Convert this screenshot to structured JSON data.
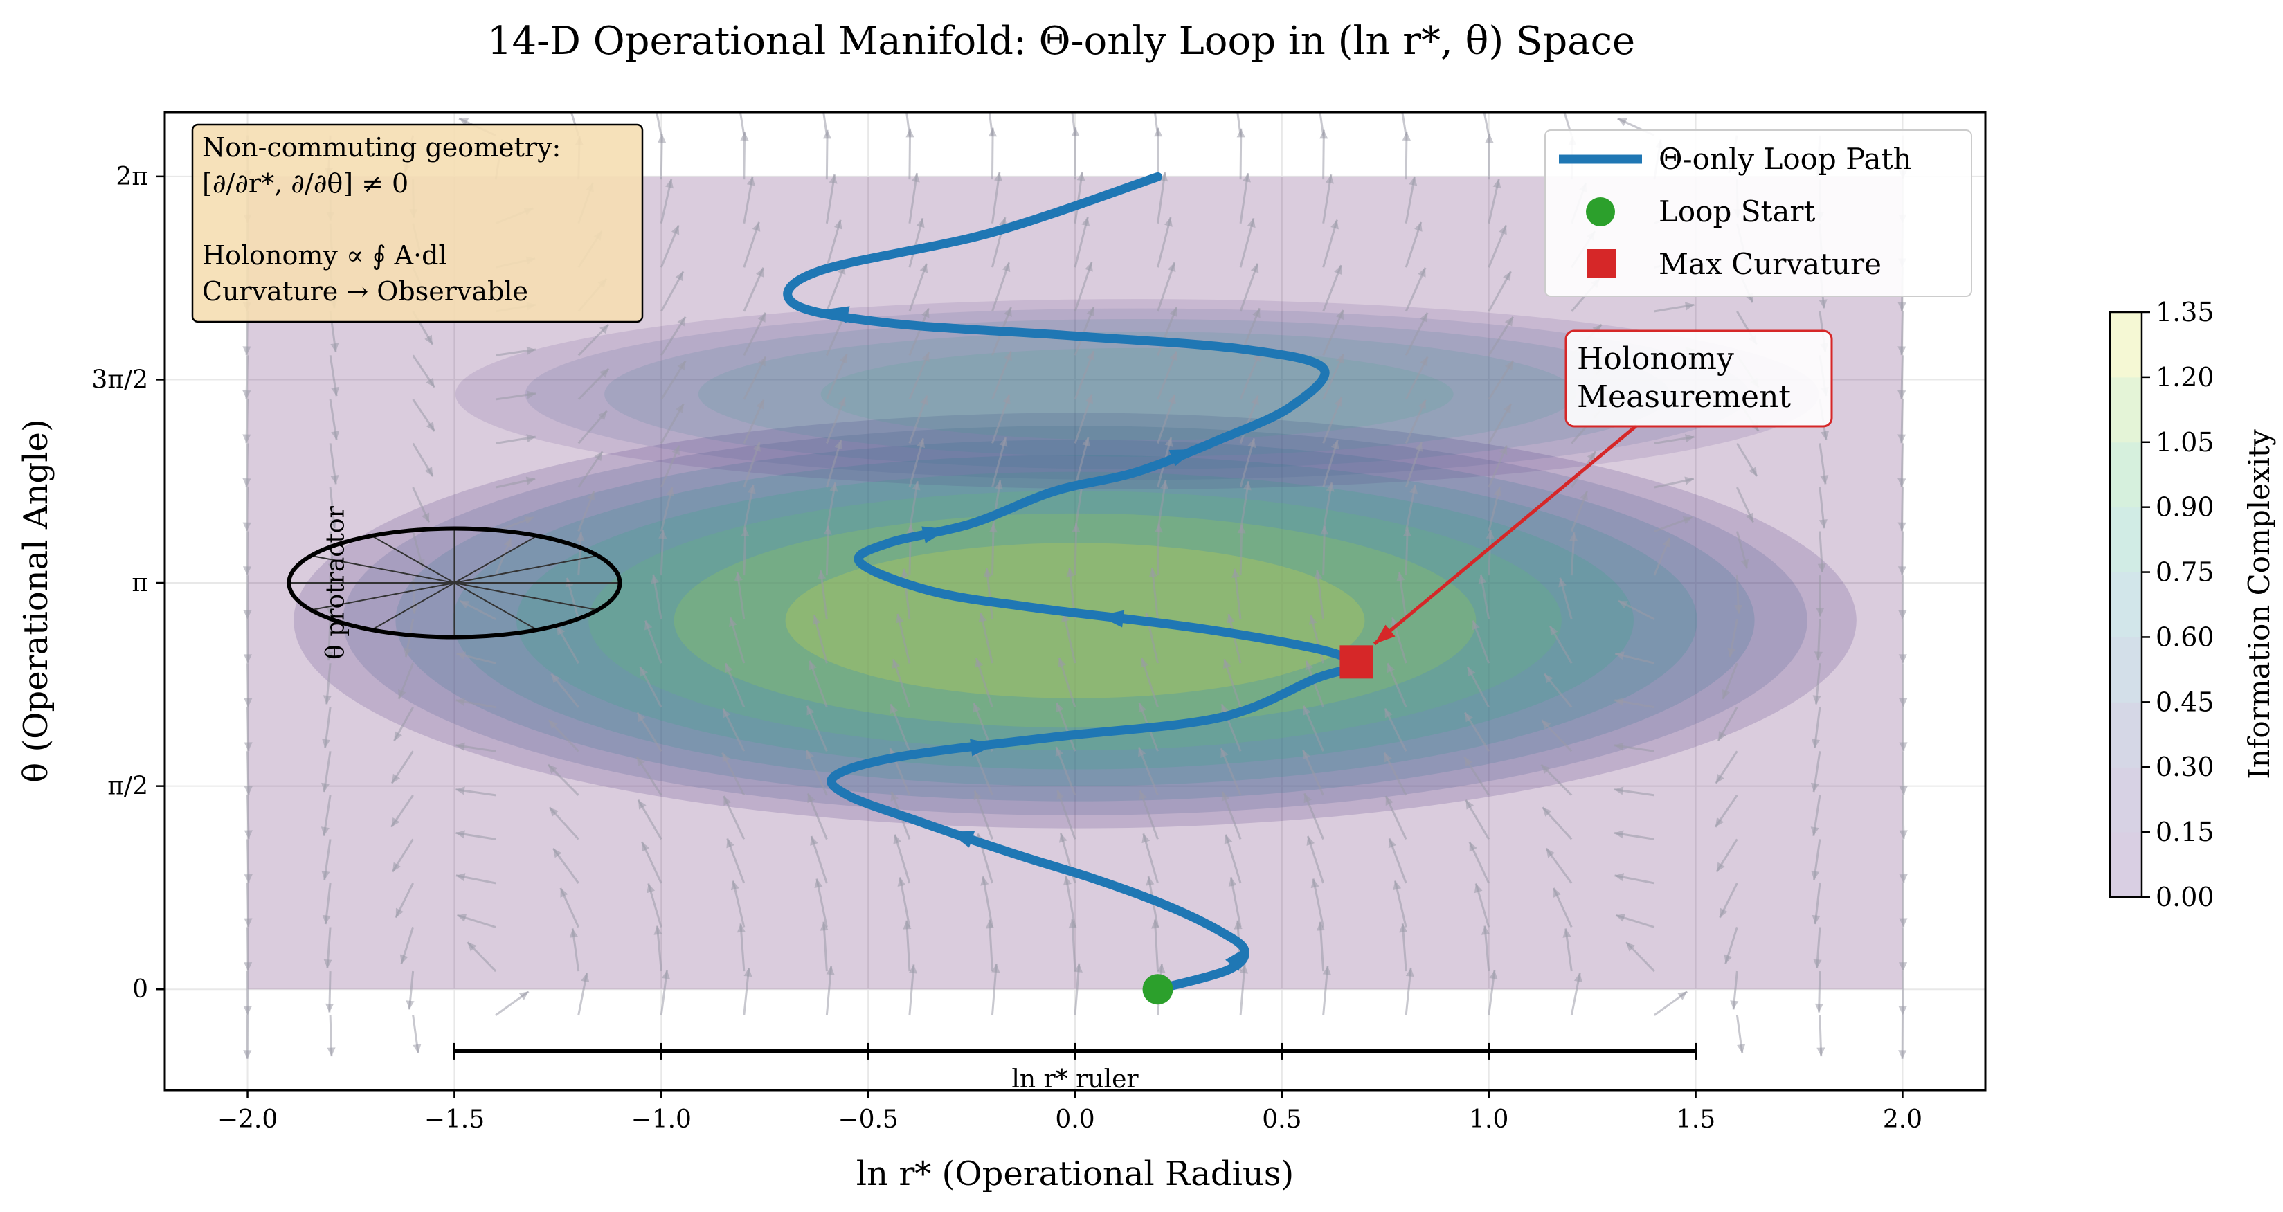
{
  "chart_data": {
    "type": "line",
    "title": "14-D Operational Manifold: Θ-only Loop in (ln r*, θ) Space",
    "xlabel": "ln r* (Operational Radius)",
    "ylabel": "θ (Operational Angle)",
    "xlim": [
      -2.2,
      2.2
    ],
    "ylim": [
      -0.78,
      6.78
    ],
    "x_ticks": [
      -2.0,
      -1.5,
      -1.0,
      -0.5,
      0.0,
      0.5,
      1.0,
      1.5,
      2.0
    ],
    "x_tick_labels": [
      "−2.0",
      "−1.5",
      "−1.0",
      "−0.5",
      "0.0",
      "0.5",
      "1.0",
      "1.5",
      "2.0"
    ],
    "y_ticks": [
      0,
      1.5708,
      3.1416,
      4.7124,
      6.2832
    ],
    "y_tick_labels": [
      "0",
      "π/2",
      "π",
      "3π/2",
      "2π"
    ],
    "grid": true,
    "legend_position": "top-right",
    "series": [
      {
        "name": "Θ-only Loop Path",
        "color": "#1f77b4",
        "points": [
          [
            0.2,
            0.0
          ],
          [
            0.37,
            0.15
          ],
          [
            0.41,
            0.3
          ],
          [
            0.35,
            0.45
          ],
          [
            0.22,
            0.65
          ],
          [
            0.05,
            0.85
          ],
          [
            -0.15,
            1.05
          ],
          [
            -0.38,
            1.3
          ],
          [
            -0.55,
            1.5
          ],
          [
            -0.58,
            1.65
          ],
          [
            -0.42,
            1.8
          ],
          [
            -0.05,
            1.95
          ],
          [
            0.35,
            2.1
          ],
          [
            0.58,
            2.4
          ],
          [
            0.67,
            2.5
          ],
          [
            0.6,
            2.62
          ],
          [
            0.3,
            2.79
          ],
          [
            -0.1,
            2.95
          ],
          [
            -0.35,
            3.08
          ],
          [
            -0.52,
            3.3
          ],
          [
            -0.45,
            3.45
          ],
          [
            -0.25,
            3.6
          ],
          [
            -0.05,
            3.85
          ],
          [
            0.15,
            4.0
          ],
          [
            0.35,
            4.25
          ],
          [
            0.52,
            4.5
          ],
          [
            0.6,
            4.8
          ],
          [
            0.4,
            4.95
          ],
          [
            0.0,
            5.05
          ],
          [
            -0.45,
            5.15
          ],
          [
            -0.68,
            5.3
          ],
          [
            -0.62,
            5.55
          ],
          [
            -0.2,
            5.85
          ],
          [
            0.2,
            6.28
          ]
        ]
      }
    ],
    "markers": [
      {
        "name": "Loop Start",
        "x": 0.2,
        "y": 0.0,
        "color": "#2ca02c",
        "shape": "circle"
      },
      {
        "name": "Max Curvature",
        "x": 0.68,
        "y": 2.53,
        "color": "#d62728",
        "shape": "square"
      }
    ],
    "heatmap": {
      "name": "Information Complexity",
      "x_range": [
        -2.0,
        2.0
      ],
      "y_range": [
        0.0,
        6.2832
      ],
      "colormap": "viridis",
      "opacity": 0.2,
      "levels": [
        0.0,
        0.15,
        0.3,
        0.45,
        0.6,
        0.75,
        0.9,
        1.05,
        1.2,
        1.35
      ],
      "peak": {
        "x": 0.0,
        "y": 2.85,
        "value": 1.32
      }
    },
    "colorbar": {
      "label": "Information Complexity",
      "ticks": [
        "0.00",
        "0.15",
        "0.30",
        "0.45",
        "0.60",
        "0.75",
        "0.90",
        "1.05",
        "1.20",
        "1.35"
      ]
    },
    "annotations": {
      "info_box": [
        "Non-commuting geometry:",
        "[∂/∂r*, ∂/∂θ] ≠ 0",
        "",
        "Holonomy ∝ ∮ A·dl",
        "Curvature → Observable"
      ],
      "holonomy_label": [
        "Holonomy",
        "Measurement"
      ],
      "protractor_label": "θ protractor",
      "ruler_label": "ln r* ruler"
    },
    "ruler": {
      "x_start": -1.5,
      "x_end": 1.5,
      "y": -0.48,
      "tick_step": 0.5
    },
    "protractor": {
      "center_x": -1.5,
      "center_y": 3.1416,
      "radius_x": 0.4,
      "radius_y": 0.42,
      "spokes": 12
    }
  }
}
